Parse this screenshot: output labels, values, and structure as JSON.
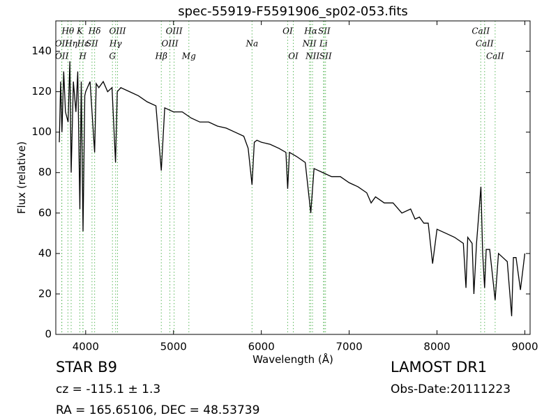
{
  "chart_data": {
    "type": "line",
    "title": "spec-55919-F5591906_sp02-053.fits",
    "x_label": "Wavelength (Å)",
    "y_label": "Flux (relative)",
    "xlim": [
      3660,
      9060
    ],
    "ylim": [
      0,
      155
    ],
    "xticks": [
      4000,
      5000,
      6000,
      7000,
      8000,
      9000
    ],
    "yticks": [
      0,
      20,
      40,
      60,
      80,
      100,
      120,
      140
    ],
    "series": [
      {
        "name": "flux",
        "color": "#000000",
        "x": [
          3700,
          3715,
          3730,
          3750,
          3770,
          3800,
          3820,
          3835,
          3860,
          3889,
          3910,
          3934,
          3950,
          3970,
          3990,
          4000,
          4050,
          4102,
          4120,
          4150,
          4200,
          4250,
          4300,
          4340,
          4360,
          4400,
          4500,
          4600,
          4700,
          4800,
          4861,
          4900,
          5000,
          5100,
          5200,
          5300,
          5400,
          5500,
          5600,
          5700,
          5800,
          5850,
          5894,
          5920,
          5950,
          6000,
          6100,
          6200,
          6280,
          6300,
          6320,
          6400,
          6500,
          6563,
          6600,
          6700,
          6800,
          6900,
          7000,
          7100,
          7200,
          7250,
          7300,
          7400,
          7500,
          7600,
          7700,
          7750,
          7800,
          7850,
          7900,
          7950,
          8000,
          8100,
          8200,
          8300,
          8330,
          8350,
          8400,
          8420,
          8450,
          8500,
          8520,
          8542,
          8560,
          8600,
          8662,
          8700,
          8750,
          8800,
          8850,
          8870,
          8900,
          8950,
          9000
        ],
        "values": [
          95,
          125,
          100,
          130,
          110,
          105,
          135,
          80,
          125,
          110,
          130,
          62,
          125,
          51,
          118,
          120,
          125,
          90,
          124,
          122,
          125,
          120,
          122,
          85,
          120,
          122,
          120,
          118,
          115,
          113,
          81,
          112,
          110,
          110,
          107,
          105,
          105,
          103,
          102,
          100,
          98,
          92,
          74,
          95,
          96,
          95,
          94,
          92,
          90,
          72,
          90,
          88,
          85,
          60,
          82,
          80,
          78,
          78,
          75,
          73,
          70,
          65,
          68,
          65,
          65,
          60,
          62,
          57,
          58,
          55,
          55,
          35,
          52,
          50,
          48,
          45,
          23,
          48,
          45,
          20,
          45,
          73,
          40,
          23,
          42,
          42,
          17,
          40,
          38,
          36,
          9,
          38,
          38,
          22,
          40
        ]
      }
    ]
  },
  "annotation_rows": [
    [
      {
        "text": "Hθ",
        "x": 3798
      },
      {
        "text": "K",
        "x": 3934
      },
      {
        "text": "Hδ",
        "x": 4102
      },
      {
        "text": "OIII",
        "x": 4363
      },
      {
        "text": "OIII",
        "x": 5007
      },
      {
        "text": "OI",
        "x": 6300
      },
      {
        "text": "Hα",
        "x": 6563
      },
      {
        "text": "SII",
        "x": 6716
      },
      {
        "text": "CaII",
        "x": 8498
      }
    ],
    [
      {
        "text": "OII",
        "x": 3727
      },
      {
        "text": "Hη",
        "x": 3835
      },
      {
        "text": "Hε",
        "x": 3970
      },
      {
        "text": "SII",
        "x": 4072
      },
      {
        "text": "Hγ",
        "x": 4341
      },
      {
        "text": "OIII",
        "x": 4959
      },
      {
        "text": "Na",
        "x": 5894
      },
      {
        "text": "NII",
        "x": 6548
      },
      {
        "text": "Li",
        "x": 6708
      },
      {
        "text": "CaII",
        "x": 8542
      }
    ],
    [
      {
        "text": "OII",
        "x": 3729
      },
      {
        "text": "H",
        "x": 3968
      },
      {
        "text": "G",
        "x": 4305
      },
      {
        "text": "Hβ",
        "x": 4861
      },
      {
        "text": "Mg",
        "x": 5175
      },
      {
        "text": "OI",
        "x": 6364
      },
      {
        "text": "NII",
        "x": 6583
      },
      {
        "text": "SII",
        "x": 6731
      },
      {
        "text": "CaII",
        "x": 8662
      }
    ]
  ],
  "info": {
    "class": "STAR   B9",
    "cz": "cz = -115.1 ± 1.3",
    "coords": "RA = 165.65106, DEC = 48.53739",
    "survey": "LAMOST DR1",
    "obs_date": "Obs-Date:20111223"
  }
}
